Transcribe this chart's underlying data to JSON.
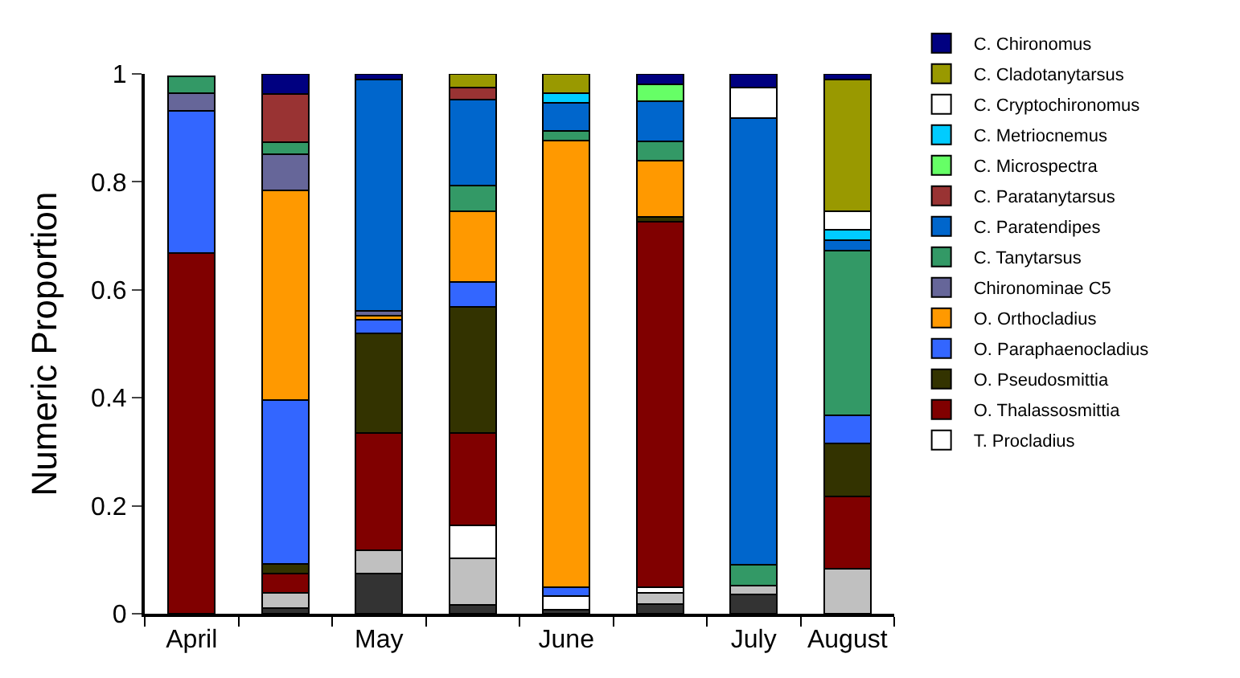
{
  "chart_data": {
    "type": "bar",
    "stacked": true,
    "ylabel": "Numeric Proportion",
    "categories": [
      "April",
      null,
      "May",
      null,
      "June",
      null,
      "July",
      "August"
    ],
    "ylim": [
      0,
      1
    ],
    "yticks": [
      0,
      0.2,
      0.4,
      0.6,
      0.8,
      1
    ],
    "grid": false,
    "legend": "right",
    "series": [
      {
        "color": "#333333",
        "values": [
          null,
          0.01,
          0.075,
          0.016,
          0.007,
          0.018,
          0.035,
          null
        ]
      },
      {
        "color": "#c0c0c0",
        "values": [
          null,
          0.028,
          0.043,
          0.086,
          null,
          0.02,
          0.017,
          0.083
        ]
      },
      {
        "name": "T. Procladius",
        "color": "#ffffff",
        "values": [
          null,
          null,
          null,
          0.061,
          0.026,
          0.011,
          null,
          null
        ]
      },
      {
        "name": "O. Thalassosmittia",
        "color": "#800000",
        "values": [
          0.668,
          0.036,
          0.217,
          0.172,
          null,
          0.677,
          null,
          0.134
        ]
      },
      {
        "name": "O. Pseudosmittia",
        "color": "#333300",
        "values": [
          null,
          0.018,
          0.184,
          0.234,
          null,
          0.009,
          null,
          0.098
        ]
      },
      {
        "name": "O. Paraphaenocladius",
        "color": "#3366ff",
        "values": [
          0.263,
          0.304,
          0.025,
          0.045,
          0.016,
          null,
          null,
          0.053
        ]
      },
      {
        "name": "O. Orthocladius",
        "color": "#ff9900",
        "values": [
          null,
          0.388,
          0.008,
          0.131,
          0.828,
          0.105,
          null,
          null
        ]
      },
      {
        "name": "Chironominae C5",
        "color": "#666699",
        "values": [
          0.033,
          0.067,
          0.009,
          null,
          null,
          null,
          null,
          null
        ]
      },
      {
        "name": "C. Tanytarsus",
        "color": "#339966",
        "values": [
          0.031,
          0.022,
          null,
          0.048,
          0.017,
          0.035,
          0.039,
          0.305
        ]
      },
      {
        "name": "C. Paratendipes",
        "color": "#0066cc",
        "values": [
          null,
          null,
          0.428,
          0.16,
          0.052,
          0.075,
          0.827,
          0.019
        ]
      },
      {
        "name": "C. Paratanytarsus",
        "color": "#993333",
        "values": [
          null,
          0.09,
          null,
          0.022,
          null,
          null,
          null,
          null
        ]
      },
      {
        "name": "C. Microspectra",
        "color": "#66ff66",
        "values": [
          null,
          null,
          null,
          null,
          null,
          0.031,
          null,
          null
        ]
      },
      {
        "name": "C. Metriocnemus",
        "color": "#00ccff",
        "values": [
          null,
          null,
          null,
          null,
          0.018,
          null,
          null,
          0.02
        ]
      },
      {
        "name": "C. Cryptochironomus",
        "color": "#ffffff",
        "values": [
          null,
          null,
          null,
          null,
          null,
          null,
          0.057,
          0.033
        ]
      },
      {
        "name": "C. Cladotanytarsus",
        "color": "#999900",
        "values": [
          null,
          null,
          null,
          0.025,
          0.036,
          null,
          null,
          0.244
        ]
      },
      {
        "name": "C. Chironomus",
        "color": "#000080",
        "values": [
          null,
          0.037,
          0.011,
          null,
          null,
          0.019,
          0.025,
          0.011
        ]
      }
    ]
  }
}
